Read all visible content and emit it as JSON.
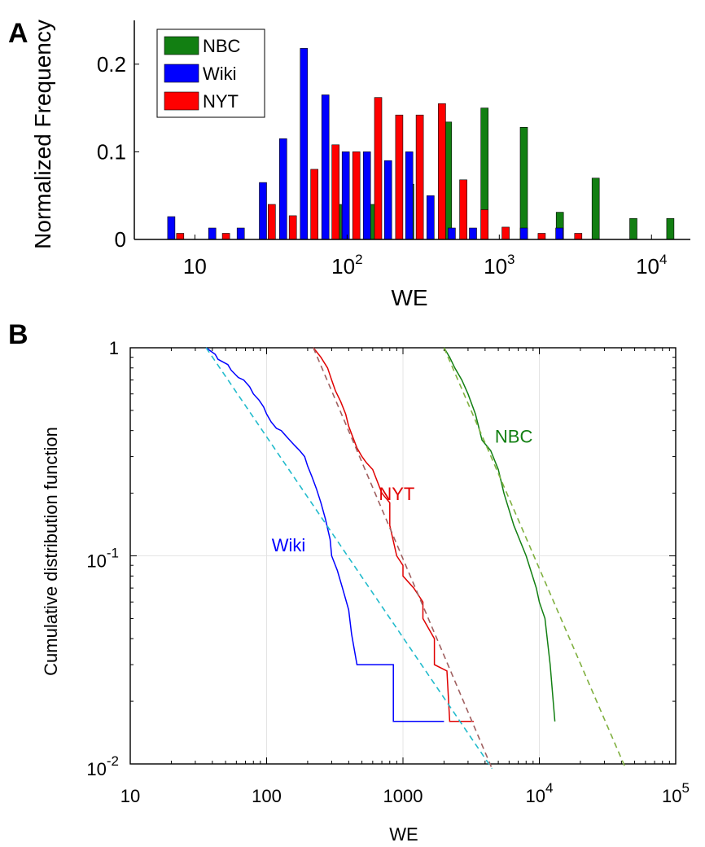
{
  "chart_data": [
    {
      "panel": "A",
      "type": "bar",
      "xlabel": "WE",
      "ylabel": "Normalized Frequency",
      "xscale": "log",
      "xlim": [
        4,
        18000
      ],
      "ylim": [
        0,
        0.25
      ],
      "x_ticks": [
        {
          "base": "10",
          "exp": "",
          "value": 10
        },
        {
          "base": "10",
          "exp": "2",
          "value": 100
        },
        {
          "base": "10",
          "exp": "3",
          "value": 1000
        },
        {
          "base": "10",
          "exp": "4",
          "value": 10000
        }
      ],
      "y_ticks": [
        {
          "label": "0",
          "value": 0
        },
        {
          "label": "0.1",
          "value": 0.1
        },
        {
          "label": "0.2",
          "value": 0.2
        }
      ],
      "legend_position": "top-left",
      "series": [
        {
          "name": "NBC",
          "color": "#127F12",
          "x": [
            87,
            150,
            260,
            460,
            800,
            1450,
            2500,
            4300,
            7600,
            13300
          ],
          "values": [
            0.04,
            0.04,
            0.063,
            0.134,
            0.15,
            0.128,
            0.031,
            0.07,
            0.024,
            0.024
          ]
        },
        {
          "name": "Wiki",
          "color": "#0000FF",
          "x": [
            7,
            13,
            20,
            28,
            38,
            52,
            72,
            98,
            135,
            186,
            256,
            353,
            487,
            672,
            1450,
            2480
          ],
          "values": [
            0.026,
            0.013,
            0.013,
            0.065,
            0.115,
            0.218,
            0.165,
            0.1,
            0.1,
            0.09,
            0.1,
            0.05,
            0.013,
            0.013,
            0.013,
            0.013
          ]
        },
        {
          "name": "NYT",
          "color": "#FF0000",
          "x": [
            8,
            16,
            32,
            44,
            61,
            84,
            115,
            160,
            220,
            300,
            420,
            580,
            800,
            1100,
            1900,
            3300
          ],
          "values": [
            0.007,
            0.007,
            0.04,
            0.027,
            0.08,
            0.108,
            0.1,
            0.162,
            0.142,
            0.142,
            0.155,
            0.068,
            0.034,
            0.014,
            0.007,
            0.007
          ]
        }
      ]
    },
    {
      "panel": "B",
      "type": "line",
      "xlabel": "WE",
      "ylabel": "Cumulative distribution function",
      "xscale": "log",
      "yscale": "log",
      "xlim": [
        10,
        100000
      ],
      "ylim": [
        0.01,
        1
      ],
      "grid": true,
      "x_ticks": [
        {
          "base": "10",
          "exp": "",
          "value": 10
        },
        {
          "base": "100",
          "exp": "",
          "value": 100
        },
        {
          "base": "1000",
          "exp": "",
          "value": 1000
        },
        {
          "base": "10",
          "exp": "4",
          "value": 10000
        },
        {
          "base": "10",
          "exp": "5",
          "value": 100000
        }
      ],
      "y_ticks": [
        {
          "base": "10",
          "exp": "-2",
          "value": 0.01
        },
        {
          "base": "10",
          "exp": "-1",
          "value": 0.1
        },
        {
          "base": "1",
          "exp": "",
          "value": 1
        }
      ],
      "curve_labels": [
        {
          "text": "Wiki",
          "color": "#0000FF",
          "x": 145,
          "y": 0.105
        },
        {
          "text": "NYT",
          "color": "#E00000",
          "x": 900,
          "y": 0.185
        },
        {
          "text": "NBC",
          "color": "#127F12",
          "x": 6500,
          "y": 0.35
        }
      ],
      "series": [
        {
          "name": "Wiki",
          "color": "#0000FF",
          "x": [
            36,
            42,
            44,
            52,
            55,
            62,
            68,
            75,
            80,
            88,
            95,
            100,
            108,
            118,
            128,
            142,
            160,
            175,
            190,
            200,
            215,
            232,
            250,
            270,
            292,
            300,
            330,
            360,
            400,
            420,
            460,
            850,
            850,
            2000
          ],
          "y": [
            1.0,
            0.93,
            0.88,
            0.83,
            0.78,
            0.72,
            0.7,
            0.65,
            0.6,
            0.56,
            0.52,
            0.48,
            0.44,
            0.41,
            0.4,
            0.37,
            0.34,
            0.32,
            0.3,
            0.27,
            0.24,
            0.21,
            0.18,
            0.15,
            0.12,
            0.1,
            0.085,
            0.07,
            0.055,
            0.042,
            0.03,
            0.03,
            0.016,
            0.016
          ]
        },
        {
          "name": "NYT",
          "color": "#E00000",
          "x": [
            220,
            250,
            280,
            300,
            320,
            350,
            380,
            400,
            430,
            460,
            500,
            540,
            600,
            700,
            800,
            800,
            900,
            1000,
            1000,
            1200,
            1400,
            1400,
            1700,
            1700,
            2100,
            2200,
            3300
          ],
          "y": [
            1.0,
            0.9,
            0.8,
            0.7,
            0.62,
            0.55,
            0.48,
            0.42,
            0.37,
            0.33,
            0.3,
            0.28,
            0.26,
            0.2,
            0.18,
            0.14,
            0.1,
            0.09,
            0.08,
            0.07,
            0.06,
            0.05,
            0.04,
            0.03,
            0.028,
            0.016,
            0.016
          ]
        },
        {
          "name": "NBC",
          "color": "#127F12",
          "x": [
            2000,
            2200,
            2400,
            2700,
            3000,
            3400,
            3800,
            4400,
            5000,
            5500,
            6500,
            8000,
            9500,
            10000,
            11000,
            12000,
            13000
          ],
          "y": [
            1.0,
            0.9,
            0.8,
            0.7,
            0.6,
            0.48,
            0.36,
            0.32,
            0.26,
            0.2,
            0.14,
            0.1,
            0.07,
            0.06,
            0.05,
            0.03,
            0.016
          ]
        },
        {
          "name": "Wiki fit",
          "color": "#22BBCC",
          "dashed": true,
          "x": [
            36,
            4500
          ],
          "y": [
            1.0,
            0.0095
          ]
        },
        {
          "name": "NYT fit",
          "color": "#A06060",
          "dashed": true,
          "x": [
            220,
            4500
          ],
          "y": [
            1.0,
            0.0095
          ]
        },
        {
          "name": "NBC fit",
          "color": "#80B040",
          "dashed": true,
          "x": [
            2000,
            43000
          ],
          "y": [
            1.0,
            0.0095
          ]
        }
      ]
    }
  ]
}
